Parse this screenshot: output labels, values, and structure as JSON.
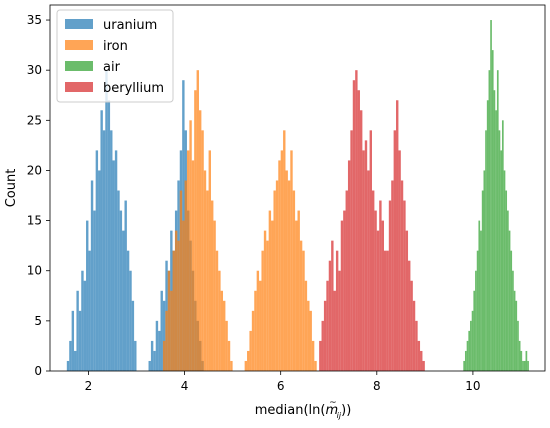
{
  "chart_data": {
    "type": "histogram",
    "title": "",
    "xlabel": "median(ln(m̃ij))",
    "xlabel_parts": {
      "prefix": "median(ln(",
      "symbol": "m",
      "accent": "~",
      "subscript": "ij",
      "suffix": "))"
    },
    "ylabel": "Count",
    "xlim": [
      1.2,
      11.5
    ],
    "ylim": [
      0,
      36.5
    ],
    "xticks": [
      2,
      4,
      6,
      8,
      10
    ],
    "yticks": [
      0,
      5,
      10,
      15,
      20,
      25,
      30,
      35
    ],
    "grid": false,
    "legend_position": "top-left",
    "series": [
      {
        "name": "uranium",
        "color": "#1f77b4",
        "alpha": 0.7,
        "bin_start": 1.55,
        "bin_width": 0.05,
        "counts": [
          1,
          3,
          6,
          2,
          8,
          6,
          10,
          9,
          15,
          12,
          19,
          16,
          22,
          20,
          26,
          24,
          30,
          27,
          24,
          21,
          22,
          18,
          16,
          14,
          17,
          12,
          10,
          7,
          3,
          0,
          0,
          0,
          0,
          0,
          1,
          3,
          2,
          5,
          4,
          8,
          7,
          11,
          10,
          14,
          12,
          16,
          19,
          22,
          29,
          24,
          16,
          13,
          10,
          7,
          5,
          3,
          1
        ]
      },
      {
        "name": "iron",
        "color": "#ff7f0e",
        "alpha": 0.7,
        "bin_start": 3.55,
        "bin_width": 0.05,
        "counts": [
          3,
          6,
          10,
          8,
          12,
          14,
          13,
          18,
          15,
          19,
          22,
          25,
          21,
          28,
          30,
          26,
          24,
          20,
          18,
          22,
          17,
          15,
          12,
          10,
          8,
          7,
          5,
          3,
          1,
          0,
          0,
          0,
          0,
          0,
          1,
          2,
          4,
          6,
          8,
          10,
          9,
          12,
          14,
          13,
          16,
          15,
          18,
          19,
          21,
          22,
          24,
          20,
          19,
          22,
          18,
          15,
          16,
          13,
          12,
          9,
          7,
          6,
          3,
          1
        ]
      },
      {
        "name": "air",
        "color": "#2ca02c",
        "alpha": 0.7,
        "bin_start": 9.8,
        "bin_width": 0.035,
        "counts": [
          1,
          2,
          3,
          4,
          5,
          6,
          8,
          10,
          12,
          15,
          14,
          18,
          20,
          24,
          27,
          30,
          35,
          32,
          28,
          26,
          30,
          24,
          22,
          25,
          20,
          18,
          16,
          14,
          12,
          10,
          8,
          7,
          5,
          3,
          2,
          1,
          1,
          2,
          1
        ]
      },
      {
        "name": "beryllium",
        "color": "#d62728",
        "alpha": 0.7,
        "bin_start": 6.8,
        "bin_width": 0.05,
        "counts": [
          3,
          5,
          7,
          9,
          11,
          13,
          8,
          12,
          10,
          15,
          16,
          18,
          21,
          24,
          29,
          30,
          28,
          26,
          22,
          23,
          20,
          24,
          18,
          16,
          14,
          17,
          15,
          12,
          12,
          17,
          19,
          24,
          27,
          22,
          19,
          17,
          14,
          11,
          9,
          7,
          5,
          3,
          2,
          1
        ]
      }
    ]
  }
}
